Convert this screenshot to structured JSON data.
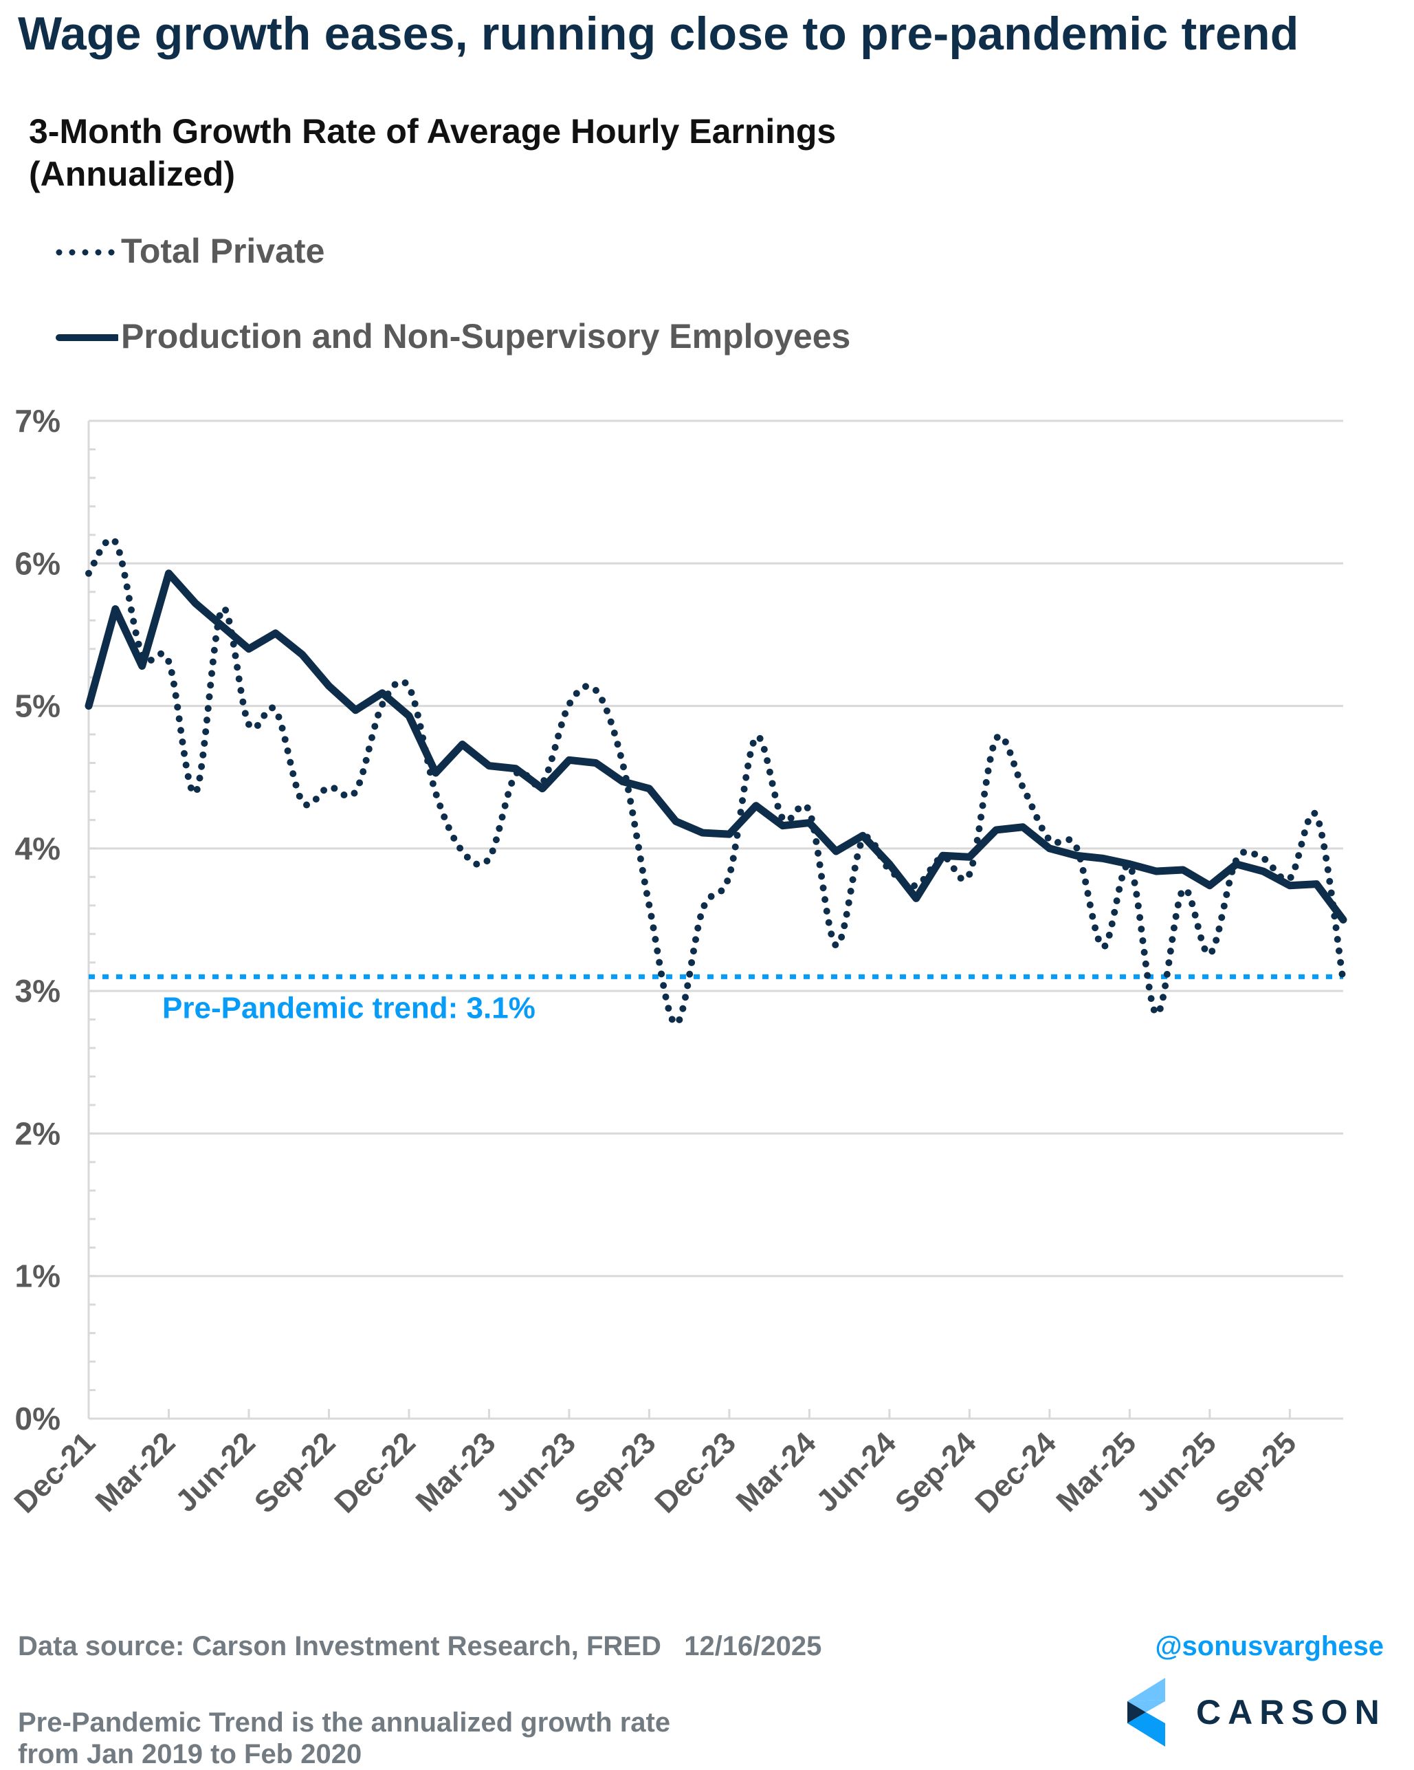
{
  "header": {
    "title": "Wage growth eases, running close to pre-pandemic trend",
    "subtitle_line1": "3-Month Growth Rate of Average Hourly Earnings",
    "subtitle_line2": "(Annualized)"
  },
  "legend": [
    {
      "label": "Total Private",
      "style": "dotted"
    },
    {
      "label": "Production and Non-Supervisory Employees",
      "style": "solid"
    }
  ],
  "colors": {
    "series": "#0d2d4a",
    "trend": "#069cf8",
    "grid": "#d9d9d9",
    "axis_text": "#5a5a5a",
    "title": "#0f2e4a",
    "footer_text": "#737b82",
    "handle": "#069cf8",
    "logo_light": "#6ec4ff",
    "logo_mid": "#069cf8",
    "logo_dark": "#0d2d4a"
  },
  "footer": {
    "source": "Data source: Carson Investment Research, FRED   12/16/2025",
    "handle": "@sonusvarghese",
    "note_line1": "Pre-Pandemic Trend is the annualized growth rate",
    "note_line2": "from Jan 2019 to Feb 2020",
    "logo_text": "CARSON"
  },
  "chart_data": {
    "type": "line",
    "title": "3-Month Growth Rate of Average Hourly Earnings (Annualized)",
    "xlabel": "",
    "ylabel": "",
    "ylim": [
      0,
      7
    ],
    "y_ticks": [
      "0%",
      "1%",
      "2%",
      "3%",
      "4%",
      "5%",
      "6%",
      "7%"
    ],
    "y_tick_values": [
      0,
      1,
      2,
      3,
      4,
      5,
      6,
      7
    ],
    "grid": true,
    "legend_position": "top-left",
    "x": [
      "Dec-21",
      "Jan-22",
      "Feb-22",
      "Mar-22",
      "Apr-22",
      "May-22",
      "Jun-22",
      "Jul-22",
      "Aug-22",
      "Sep-22",
      "Oct-22",
      "Nov-22",
      "Dec-22",
      "Jan-23",
      "Feb-23",
      "Mar-23",
      "Apr-23",
      "May-23",
      "Jun-23",
      "Jul-23",
      "Aug-23",
      "Sep-23",
      "Oct-23",
      "Nov-23",
      "Dec-23",
      "Jan-24",
      "Feb-24",
      "Mar-24",
      "Apr-24",
      "May-24",
      "Jun-24",
      "Jul-24",
      "Aug-24",
      "Sep-24",
      "Oct-24",
      "Nov-24",
      "Dec-24",
      "Jan-25",
      "Feb-25",
      "Mar-25",
      "Apr-25",
      "May-25",
      "Jun-25",
      "Jul-25",
      "Aug-25",
      "Sep-25",
      "Oct-25",
      "Nov-25"
    ],
    "x_tick_labels": [
      "Dec-21",
      "Mar-22",
      "Jun-22",
      "Sep-22",
      "Dec-22",
      "Mar-23",
      "Jun-23",
      "Sep-23",
      "Dec-23",
      "Mar-24",
      "Jun-24",
      "Sep-24",
      "Dec-24",
      "Mar-25",
      "Jun-25",
      "Sep-25"
    ],
    "series": [
      {
        "name": "Total Private",
        "style": "dotted",
        "values": [
          5.93,
          6.15,
          5.36,
          5.31,
          4.39,
          5.68,
          4.87,
          4.97,
          4.33,
          4.43,
          4.4,
          5.01,
          5.13,
          4.39,
          3.98,
          3.93,
          4.52,
          4.46,
          5.01,
          5.11,
          4.6,
          3.6,
          2.77,
          3.57,
          3.81,
          4.78,
          4.21,
          4.26,
          3.32,
          4.06,
          3.85,
          3.74,
          3.94,
          3.82,
          4.77,
          4.43,
          4.06,
          4.01,
          3.31,
          3.88,
          2.84,
          3.71,
          3.26,
          3.92,
          3.93,
          3.79,
          4.23,
          3.07
        ]
      },
      {
        "name": "Production and Non-Supervisory Employees",
        "style": "solid",
        "values": [
          5.0,
          5.68,
          5.28,
          5.93,
          5.72,
          5.56,
          5.4,
          5.51,
          5.36,
          5.14,
          4.97,
          5.09,
          4.93,
          4.53,
          4.73,
          4.58,
          4.56,
          4.42,
          4.62,
          4.6,
          4.47,
          4.42,
          4.19,
          4.11,
          4.1,
          4.3,
          4.16,
          4.18,
          3.98,
          4.09,
          3.89,
          3.65,
          3.95,
          3.94,
          4.13,
          4.15,
          4.0,
          3.95,
          3.93,
          3.89,
          3.84,
          3.85,
          3.74,
          3.89,
          3.84,
          3.74,
          3.75,
          3.5
        ]
      }
    ],
    "reference_line": {
      "name": "Pre-Pandemic trend",
      "value": 3.1,
      "label": "Pre-Pandemic trend: 3.1%",
      "style": "dotted"
    }
  }
}
